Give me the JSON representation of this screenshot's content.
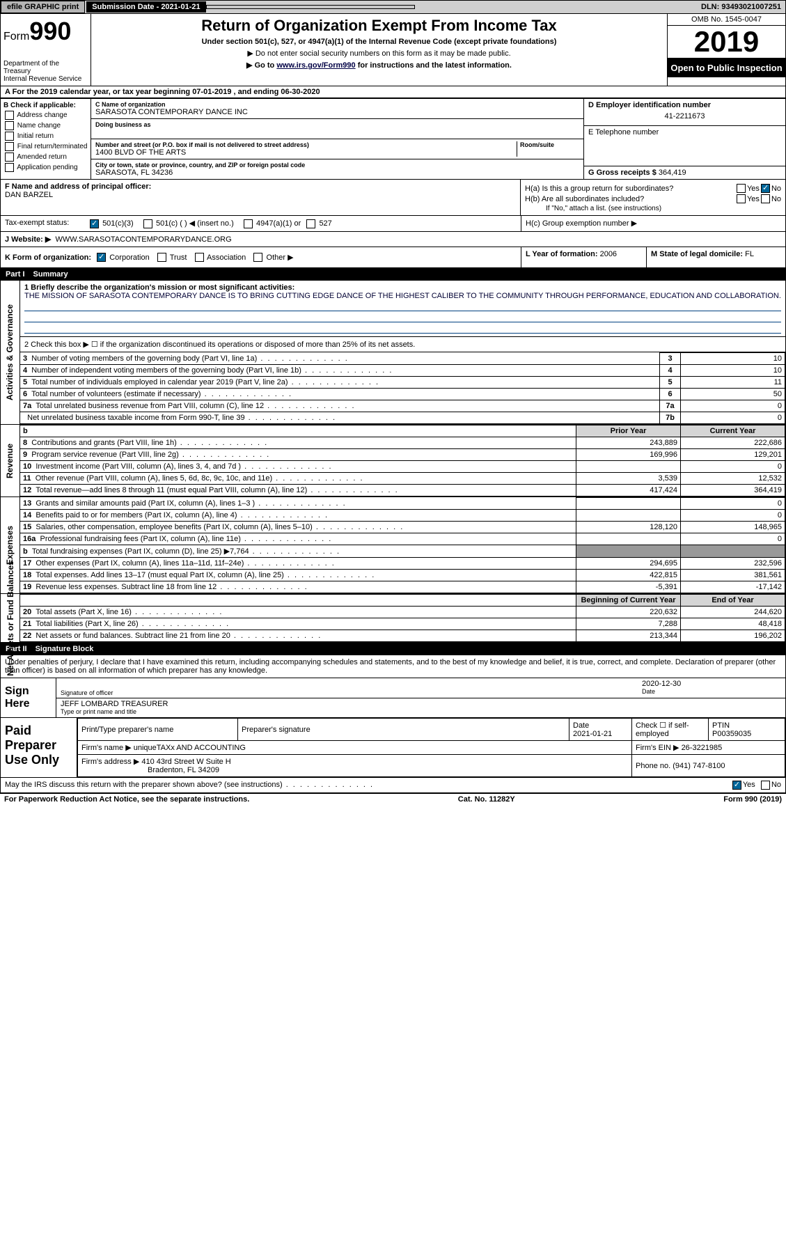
{
  "topbar": {
    "efile": "efile GRAPHIC print",
    "submission": "Submission Date - 2021-01-21",
    "dln": "DLN: 93493021007251"
  },
  "header": {
    "form_label": "Form",
    "form_no": "990",
    "dept1": "Department of the Treasury",
    "dept2": "Internal Revenue Service",
    "title": "Return of Organization Exempt From Income Tax",
    "sub1": "Under section 501(c), 527, or 4947(a)(1) of the Internal Revenue Code (except private foundations)",
    "sub2": "▶ Do not enter social security numbers on this form as it may be made public.",
    "sub3_pre": "▶ Go to ",
    "sub3_link": "www.irs.gov/Form990",
    "sub3_post": " for instructions and the latest information.",
    "omb": "OMB No. 1545-0047",
    "year": "2019",
    "otp": "Open to Public Inspection"
  },
  "lineA": "A For the 2019 calendar year, or tax year beginning 07-01-2019    , and ending 06-30-2020",
  "boxB": {
    "label": "B Check if applicable:",
    "opts": [
      "Address change",
      "Name change",
      "Initial return",
      "Final return/terminated",
      "Amended return",
      "Application pending"
    ]
  },
  "boxC": {
    "name_lbl": "C Name of organization",
    "name": "SARASOTA CONTEMPORARY DANCE INC",
    "dba_lbl": "Doing business as",
    "addr_lbl": "Number and street (or P.O. box if mail is not delivered to street address)",
    "room_lbl": "Room/suite",
    "addr": "1400 BLVD OF THE ARTS",
    "city_lbl": "City or town, state or province, country, and ZIP or foreign postal code",
    "city": "SARASOTA, FL  34236"
  },
  "boxD": {
    "ein_lbl": "D Employer identification number",
    "ein": "41-2211673"
  },
  "boxE": {
    "tel_lbl": "E Telephone number"
  },
  "boxG": {
    "gross_lbl": "G Gross receipts $",
    "gross": "364,419"
  },
  "boxF": {
    "lbl": "F  Name and address of principal officer:",
    "name": "DAN BARZEL"
  },
  "boxH": {
    "a": "H(a)  Is this a group return for subordinates?",
    "b": "H(b)  Are all subordinates included?",
    "note": "If \"No,\" attach a list. (see instructions)",
    "c": "H(c)  Group exemption number ▶",
    "yes": "Yes",
    "no": "No"
  },
  "taxrow": {
    "lbl": "Tax-exempt status:",
    "o1": "501(c)(3)",
    "o2": "501(c) (   ) ◀ (insert no.)",
    "o3": "4947(a)(1) or",
    "o4": "527"
  },
  "boxJ": {
    "lbl": "J   Website: ▶",
    "val": "WWW.SARASOTACONTEMPORARYDANCE.ORG"
  },
  "boxK": {
    "lbl": "K Form of organization:",
    "opts": [
      "Corporation",
      "Trust",
      "Association",
      "Other ▶"
    ]
  },
  "boxL": {
    "lbl": "L Year of formation:",
    "val": "2006"
  },
  "boxM": {
    "lbl": "M State of legal domicile:",
    "val": "FL"
  },
  "part1": {
    "hdr": "Part I",
    "title": "Summary"
  },
  "summary": {
    "q1": "1  Briefly describe the organization's mission or most significant activities:",
    "mission": "THE MISSION OF SARASOTA CONTEMPORARY DANCE IS TO BRING CUTTING EDGE DANCE OF THE HIGHEST CALIBER TO THE COMMUNITY THROUGH PERFORMANCE, EDUCATION AND COLLABORATION.",
    "q2": "2   Check this box ▶ ☐  if the organization discontinued its operations or disposed of more than 25% of its net assets.",
    "rows_ag": [
      {
        "n": "3",
        "t": "Number of voting members of the governing body (Part VI, line 1a)",
        "rn": "3",
        "v": "10"
      },
      {
        "n": "4",
        "t": "Number of independent voting members of the governing body (Part VI, line 1b)",
        "rn": "4",
        "v": "10"
      },
      {
        "n": "5",
        "t": "Total number of individuals employed in calendar year 2019 (Part V, line 2a)",
        "rn": "5",
        "v": "11"
      },
      {
        "n": "6",
        "t": "Total number of volunteers (estimate if necessary)",
        "rn": "6",
        "v": "50"
      },
      {
        "n": "7a",
        "t": "Total unrelated business revenue from Part VIII, column (C), line 12",
        "rn": "7a",
        "v": "0"
      },
      {
        "n": "",
        "t": "Net unrelated business taxable income from Form 990-T, line 39",
        "rn": "7b",
        "v": "0"
      }
    ],
    "py": "Prior Year",
    "cy": "Current Year",
    "rows_rev": [
      {
        "n": "8",
        "t": "Contributions and grants (Part VIII, line 1h)",
        "py": "243,889",
        "cy": "222,686"
      },
      {
        "n": "9",
        "t": "Program service revenue (Part VIII, line 2g)",
        "py": "169,996",
        "cy": "129,201"
      },
      {
        "n": "10",
        "t": "Investment income (Part VIII, column (A), lines 3, 4, and 7d )",
        "py": "",
        "cy": "0"
      },
      {
        "n": "11",
        "t": "Other revenue (Part VIII, column (A), lines 5, 6d, 8c, 9c, 10c, and 11e)",
        "py": "3,539",
        "cy": "12,532"
      },
      {
        "n": "12",
        "t": "Total revenue—add lines 8 through 11 (must equal Part VIII, column (A), line 12)",
        "py": "417,424",
        "cy": "364,419"
      }
    ],
    "rows_exp": [
      {
        "n": "13",
        "t": "Grants and similar amounts paid (Part IX, column (A), lines 1–3 )",
        "py": "",
        "cy": "0"
      },
      {
        "n": "14",
        "t": "Benefits paid to or for members (Part IX, column (A), line 4)",
        "py": "",
        "cy": "0"
      },
      {
        "n": "15",
        "t": "Salaries, other compensation, employee benefits (Part IX, column (A), lines 5–10)",
        "py": "128,120",
        "cy": "148,965"
      },
      {
        "n": "16a",
        "t": "Professional fundraising fees (Part IX, column (A), line 11e)",
        "py": "",
        "cy": "0"
      },
      {
        "n": "b",
        "t": "Total fundraising expenses (Part IX, column (D), line 25) ▶7,764",
        "py": "gray",
        "cy": "gray"
      },
      {
        "n": "17",
        "t": "Other expenses (Part IX, column (A), lines 11a–11d, 11f–24e)",
        "py": "294,695",
        "cy": "232,596"
      },
      {
        "n": "18",
        "t": "Total expenses. Add lines 13–17 (must equal Part IX, column (A), line 25)",
        "py": "422,815",
        "cy": "381,561"
      },
      {
        "n": "19",
        "t": "Revenue less expenses. Subtract line 18 from line 12",
        "py": "-5,391",
        "cy": "-17,142"
      }
    ],
    "bcy": "Beginning of Current Year",
    "eoy": "End of Year",
    "rows_na": [
      {
        "n": "20",
        "t": "Total assets (Part X, line 16)",
        "py": "220,632",
        "cy": "244,620"
      },
      {
        "n": "21",
        "t": "Total liabilities (Part X, line 26)",
        "py": "7,288",
        "cy": "48,418"
      },
      {
        "n": "22",
        "t": "Net assets or fund balances. Subtract line 21 from line 20",
        "py": "213,344",
        "cy": "196,202"
      }
    ],
    "sides": {
      "ag": "Activities & Governance",
      "rev": "Revenue",
      "exp": "Expenses",
      "na": "Net Assets or Fund Balances"
    }
  },
  "part2": {
    "hdr": "Part II",
    "title": "Signature Block"
  },
  "sig": {
    "decl": "Under penalties of perjury, I declare that I have examined this return, including accompanying schedules and statements, and to the best of my knowledge and belief, it is true, correct, and complete. Declaration of preparer (other than officer) is based on all information of which preparer has any knowledge.",
    "sign_here": "Sign Here",
    "sig_officer_lbl": "Signature of officer",
    "date": "2020-12-30",
    "date_lbl": "Date",
    "name": "JEFF LOMBARD  TREASURER",
    "name_lbl": "Type or print name and title"
  },
  "paid": {
    "title": "Paid Preparer Use Only",
    "h1": "Print/Type preparer's name",
    "h2": "Preparer's signature",
    "h3": "Date",
    "h3v": "2021-01-21",
    "h4": "Check ☐ if self-employed",
    "h5": "PTIN",
    "h5v": "P00359035",
    "firm_lbl": "Firm's name    ▶",
    "firm": "uniqueTAXx AND ACCOUNTING",
    "ein_lbl": "Firm's EIN ▶",
    "ein": "26-3221985",
    "addr_lbl": "Firm's address ▶",
    "addr1": "410 43rd Street W Suite H",
    "addr2": "Bradenton, FL  34209",
    "phone_lbl": "Phone no.",
    "phone": "(941) 747-8100",
    "discuss": "May the IRS discuss this return with the preparer shown above? (see instructions)",
    "yes": "Yes",
    "no": "No"
  },
  "footer": {
    "l": "For Paperwork Reduction Act Notice, see the separate instructions.",
    "c": "Cat. No. 11282Y",
    "r": "Form 990 (2019)"
  }
}
